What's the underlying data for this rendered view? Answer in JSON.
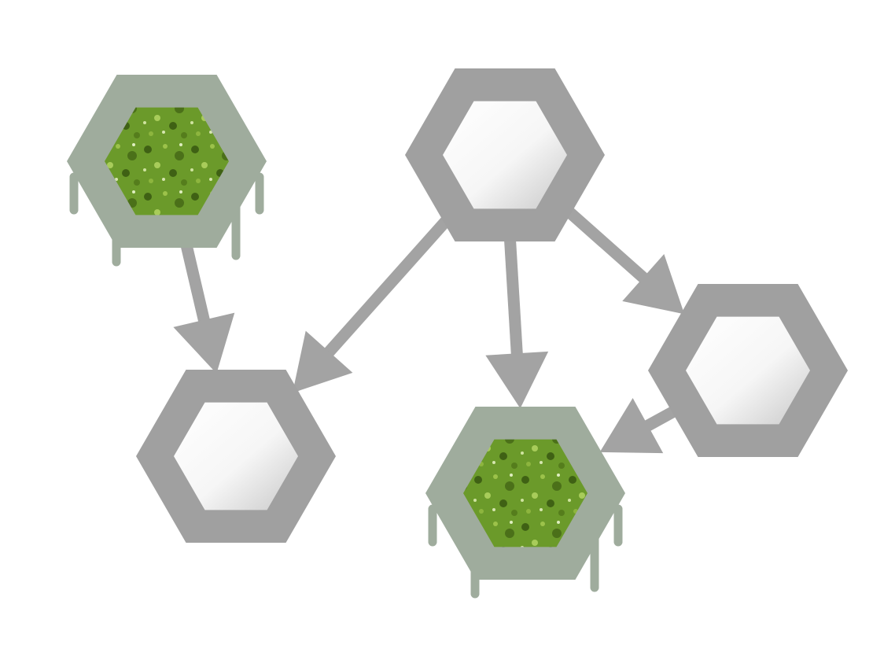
{
  "diagram": {
    "colors": {
      "frame": "#a0a0a0",
      "slime_frame": "#9fac9d",
      "slime_fill": "#6b9a2a",
      "slime_dark": "#3f6114",
      "slime_light": "#9cc24a",
      "edge": "#a3a3a3",
      "background": "#ffffff"
    },
    "nodes": [
      {
        "id": "n1",
        "state": "contaminated"
      },
      {
        "id": "n2",
        "state": "clean"
      },
      {
        "id": "n3",
        "state": "clean"
      },
      {
        "id": "n4",
        "state": "contaminated"
      },
      {
        "id": "n5",
        "state": "clean"
      }
    ],
    "edges": [
      {
        "from": "n1",
        "to": "n3"
      },
      {
        "from": "n2",
        "to": "n3"
      },
      {
        "from": "n2",
        "to": "n4"
      },
      {
        "from": "n2",
        "to": "n5"
      },
      {
        "from": "n5",
        "to": "n4"
      }
    ]
  }
}
